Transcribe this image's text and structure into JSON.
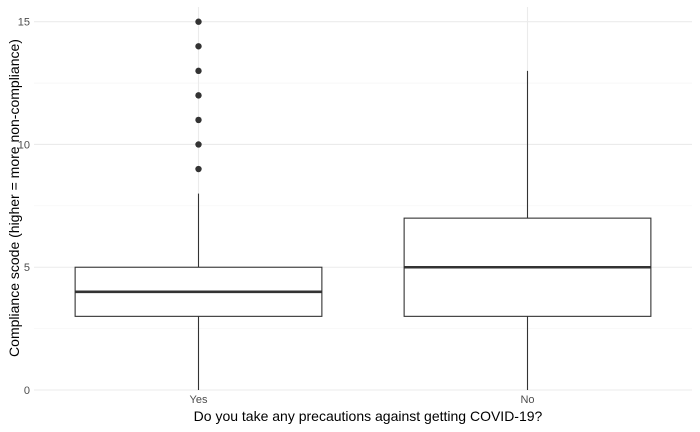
{
  "chart_data": {
    "type": "box",
    "title": "",
    "xlabel": "Do you take any precautions against getting COVID-19?",
    "ylabel": "Compliance scode (higher = more non-compliance)",
    "ylim": [
      0,
      15.6
    ],
    "yticks": [
      0,
      5,
      10,
      15
    ],
    "grid": true,
    "categories": [
      "Yes",
      "No"
    ],
    "boxes": [
      {
        "category": "Yes",
        "whisker_low": 0,
        "q1": 3,
        "median": 4,
        "q3": 5,
        "whisker_high": 8,
        "outliers": [
          9,
          10,
          11,
          12,
          13,
          14,
          15
        ]
      },
      {
        "category": "No",
        "whisker_low": 0,
        "q1": 3,
        "median": 5,
        "q3": 7,
        "whisker_high": 13,
        "outliers": []
      }
    ]
  },
  "colors": {
    "panel_background": "#ffffff",
    "major_grid": "#ebebeb",
    "minor_grid": "#f3f3f3",
    "box_line": "#333333",
    "outlier_fill": "#333333"
  }
}
